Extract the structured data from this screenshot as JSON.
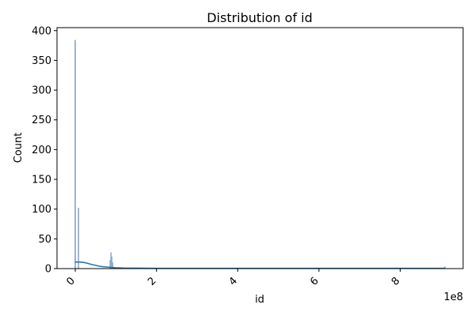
{
  "chart_data": {
    "type": "bar",
    "title": "Distribution of id",
    "xlabel": "id",
    "ylabel": "Count",
    "x_offset_label": "1e8",
    "xlim": [
      -0.45,
      9.55
    ],
    "ylim": [
      0,
      405
    ],
    "xticks": [
      0,
      2,
      4,
      6,
      8
    ],
    "xtick_labels": [
      "0",
      "2",
      "4",
      "6",
      "8"
    ],
    "yticks": [
      0,
      50,
      100,
      150,
      200,
      250,
      300,
      350,
      400
    ],
    "ytick_labels": [
      "0",
      "50",
      "100",
      "150",
      "200",
      "250",
      "300",
      "350",
      "400"
    ],
    "bars": [
      {
        "x": 0.0,
        "value": 384
      },
      {
        "x": 0.08,
        "value": 102
      },
      {
        "x": 0.86,
        "value": 14
      },
      {
        "x": 0.88,
        "value": 27
      },
      {
        "x": 0.9,
        "value": 20
      },
      {
        "x": 0.92,
        "value": 10
      },
      {
        "x": 9.1,
        "value": 3
      }
    ],
    "kde": {
      "x": [
        0,
        0.1,
        0.2,
        0.3,
        0.4,
        0.5,
        0.6,
        0.7,
        0.8,
        0.9,
        1.0,
        1.2,
        1.5,
        2.0,
        3.0,
        4.0,
        5.0,
        6.0,
        7.0,
        8.0,
        9.1
      ],
      "y": [
        11,
        11,
        10.5,
        9,
        7,
        5.5,
        4,
        3,
        2.5,
        2,
        1.5,
        1,
        0.8,
        0.5,
        0.5,
        0.5,
        0.5,
        0.5,
        0.5,
        0.5,
        0.5
      ]
    },
    "colors": {
      "bar": "#8eaacc",
      "kde": "#1f77b4"
    }
  }
}
